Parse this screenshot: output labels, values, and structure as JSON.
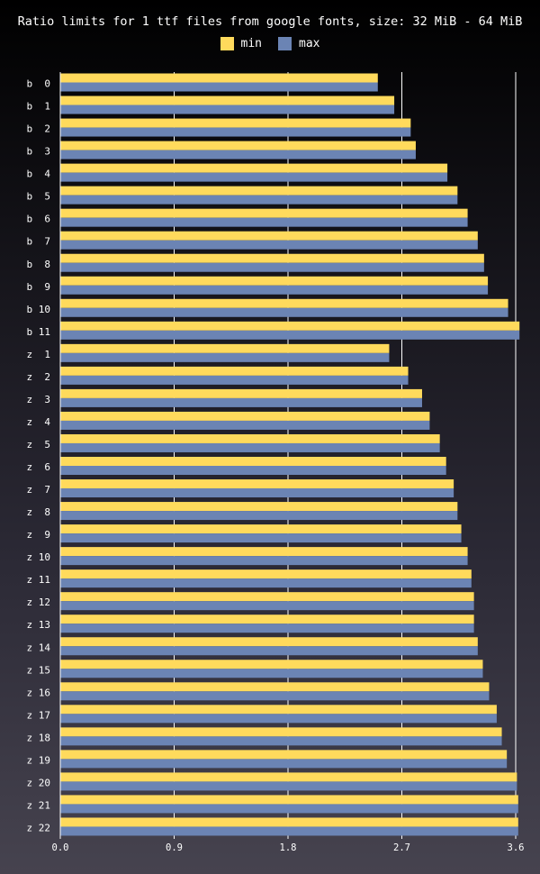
{
  "chart_data": {
    "type": "bar",
    "orientation": "horizontal",
    "title": "Ratio limits for 1 ttf files from google fonts, size: 32 MiB - 64 MiB",
    "xlabel": "",
    "ylabel": "",
    "xlim": [
      0.0,
      3.6
    ],
    "x_ticks": [
      "0.0",
      "0.9",
      "1.8",
      "2.7",
      "3.6"
    ],
    "grid": "vertical",
    "legend_position": "top-center",
    "categories": [
      "b  0",
      "b  1",
      "b  2",
      "b  3",
      "b  4",
      "b  5",
      "b  6",
      "b  7",
      "b  8",
      "b  9",
      "b 10",
      "b 11",
      "z  1",
      "z  2",
      "z  3",
      "z  4",
      "z  5",
      "z  6",
      "z  7",
      "z  8",
      "z  9",
      "z 10",
      "z 11",
      "z 12",
      "z 13",
      "z 14",
      "z 15",
      "z 16",
      "z 17",
      "z 18",
      "z 19",
      "z 20",
      "z 21",
      "z 22"
    ],
    "series": [
      {
        "name": "min",
        "color": "#ffda5c",
        "values": [
          2.51,
          2.64,
          2.77,
          2.81,
          3.06,
          3.14,
          3.22,
          3.3,
          3.35,
          3.38,
          3.54,
          3.63,
          2.6,
          2.75,
          2.86,
          2.92,
          3.0,
          3.05,
          3.11,
          3.14,
          3.17,
          3.22,
          3.25,
          3.27,
          3.27,
          3.3,
          3.34,
          3.39,
          3.45,
          3.49,
          3.53,
          3.61,
          3.62,
          3.62
        ]
      },
      {
        "name": "max",
        "color": "#6b84b4",
        "values": [
          2.51,
          2.64,
          2.77,
          2.81,
          3.06,
          3.14,
          3.22,
          3.3,
          3.35,
          3.38,
          3.54,
          3.63,
          2.6,
          2.75,
          2.86,
          2.92,
          3.0,
          3.05,
          3.11,
          3.14,
          3.17,
          3.22,
          3.25,
          3.27,
          3.27,
          3.3,
          3.34,
          3.39,
          3.45,
          3.49,
          3.53,
          3.61,
          3.62,
          3.62
        ]
      }
    ]
  }
}
